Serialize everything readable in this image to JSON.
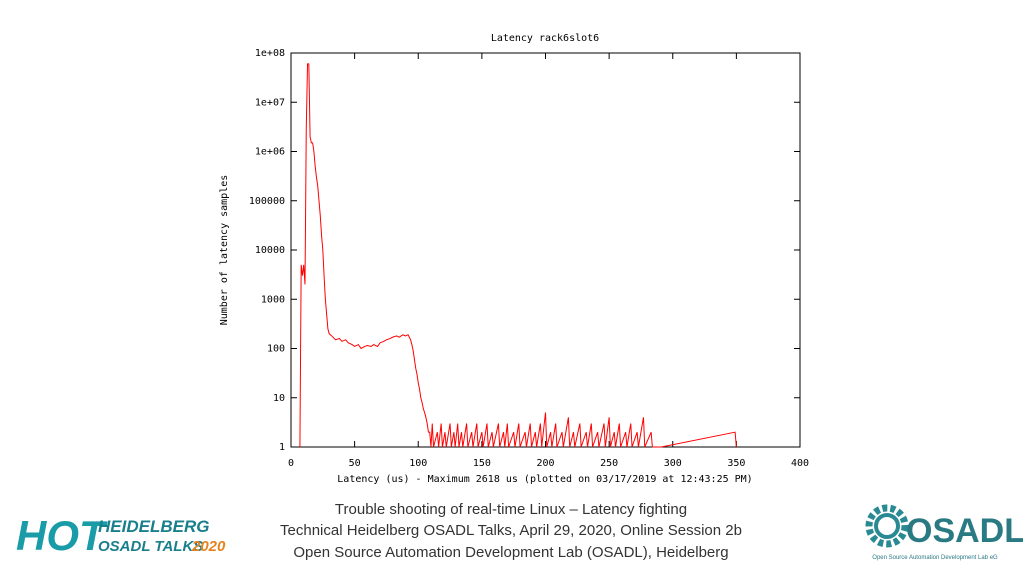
{
  "chart_data": {
    "type": "line",
    "title": "Latency rack6slot6",
    "x_label": "Latency (us) - Maximum 2618 us (plotted on 03/17/2019 at 12:43:25 PM)",
    "y_label": "Number of latency samples",
    "log_y": true,
    "grid": false,
    "xlim": [
      0,
      400
    ],
    "xticks": [
      0,
      50,
      100,
      150,
      200,
      250,
      300,
      350,
      400
    ],
    "ylim": [
      1,
      100000000
    ],
    "yticks": [
      1,
      10,
      100,
      1000,
      10000,
      100000,
      {
        "value": 1000000,
        "label": "1e+06"
      },
      {
        "value": 10000000,
        "label": "1e+07"
      },
      {
        "value": 100000000,
        "label": "1e+08"
      }
    ],
    "series": [
      {
        "color": "#ff0000",
        "x": [
          7,
          8,
          9,
          10,
          11,
          12,
          13,
          14,
          15,
          16,
          17,
          18,
          19,
          20,
          21,
          22,
          23,
          24,
          25,
          26,
          27,
          28,
          29,
          30,
          32,
          35,
          38,
          40,
          43,
          45,
          48,
          50,
          53,
          55,
          58,
          60,
          63,
          65,
          68,
          70,
          73,
          75,
          78,
          80,
          83,
          85,
          88,
          90,
          92,
          94,
          95,
          96,
          97,
          98,
          99,
          100,
          101,
          102,
          103,
          104,
          105,
          106,
          107,
          108,
          109,
          110,
          111,
          112,
          115,
          116,
          118,
          119,
          121,
          122,
          125,
          126,
          128,
          129,
          131,
          132,
          134,
          135,
          138,
          139,
          142,
          143,
          146,
          147,
          150,
          151,
          154,
          155,
          158,
          159,
          163,
          164,
          167,
          168,
          170,
          171,
          175,
          176,
          179,
          180,
          184,
          185,
          188,
          189,
          192,
          193,
          196,
          197,
          200,
          201,
          204,
          205,
          208,
          209,
          213,
          214,
          218,
          219,
          222,
          223,
          227,
          228,
          232,
          233,
          236,
          237,
          241,
          242,
          246,
          247,
          250,
          251,
          254,
          255,
          258,
          259,
          263,
          264,
          267,
          268,
          272,
          273,
          277,
          278,
          283,
          284,
          291,
          349,
          350
        ],
        "values": [
          1,
          5000,
          3000,
          5000,
          2000,
          3000000,
          60000000,
          60000000,
          2000000,
          1500000,
          1500000,
          1000000,
          500000,
          300000,
          200000,
          100000,
          50000,
          20000,
          10000,
          3000,
          1000,
          500,
          250,
          200,
          180,
          150,
          160,
          140,
          150,
          130,
          120,
          110,
          120,
          100,
          110,
          115,
          110,
          120,
          110,
          130,
          140,
          150,
          160,
          170,
          180,
          170,
          190,
          180,
          190,
          150,
          120,
          90,
          60,
          40,
          30,
          20,
          15,
          10,
          8,
          6,
          5,
          4,
          3,
          2,
          2,
          1,
          3,
          1,
          2,
          1,
          3,
          1,
          2,
          1,
          3,
          1,
          2,
          1,
          3,
          1,
          2,
          1,
          3,
          1,
          2,
          1,
          3,
          1,
          2,
          1,
          3,
          1,
          2,
          1,
          3,
          1,
          2,
          1,
          3,
          1,
          2,
          1,
          3,
          1,
          2,
          1,
          3,
          1,
          2,
          1,
          3,
          1,
          5,
          1,
          2,
          1,
          3,
          1,
          2,
          1,
          4,
          1,
          2,
          1,
          3,
          1,
          2,
          1,
          3,
          1,
          2,
          1,
          3,
          1,
          4,
          1,
          2,
          1,
          3,
          1,
          2,
          1,
          3,
          1,
          2,
          1,
          4,
          1,
          2,
          1,
          1,
          2,
          1
        ]
      }
    ]
  },
  "footer": [
    "Trouble shooting of real-time Linux – Latency fighting",
    "Technical Heidelberg OSADL Talks, April 29, 2020, Online Session 2b",
    "Open Source Automation Development Lab (OSADL), Heidelberg"
  ],
  "logo_left": {
    "hot": "HOT",
    "line1": "HEIDELBERG",
    "line2": "OSADL TALKS",
    "year": "2020"
  },
  "logo_right": {
    "name": "OSADL",
    "tagline": "Open Source Automation Development Lab eG"
  }
}
